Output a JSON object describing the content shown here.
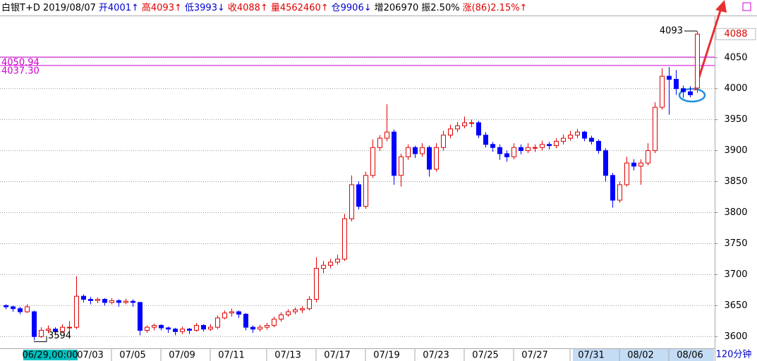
{
  "chart_data": {
    "type": "candlestick",
    "header": [
      {
        "text": "白银T+D 2019/08/07",
        "color": "#000000"
      },
      {
        "text": "开4001↑",
        "color": "#0000cc"
      },
      {
        "text": "高4093↑",
        "color": "#e00000"
      },
      {
        "text": "低3993↓",
        "color": "#0000cc"
      },
      {
        "text": "收4088↑",
        "color": "#e00000"
      },
      {
        "text": "量4562460↑",
        "color": "#e00000"
      },
      {
        "text": "仓9906↓",
        "color": "#0000cc"
      },
      {
        "text": "增206970",
        "color": "#000000"
      },
      {
        "text": "振2.50%",
        "color": "#000000"
      },
      {
        "text": "涨(86)2.15%↑",
        "color": "#e00000"
      }
    ],
    "period": "120分钟",
    "up_color": "#e00000",
    "down_color": "#0000ff",
    "ylim": [
      3581,
      4118
    ],
    "yticks": [
      3600,
      3650,
      3700,
      3750,
      3800,
      3850,
      3900,
      3950,
      4000,
      4050
    ],
    "grid": true,
    "ref_lines": [
      {
        "value": 4050.94,
        "label": "4050.94"
      },
      {
        "value": 4037.3,
        "label": "4037.30"
      }
    ],
    "ref_color": "#d000d0",
    "last_price": 4088,
    "annotations": [
      "4093",
      "3594"
    ],
    "categories": [
      "06/29,00:00",
      null,
      null,
      null,
      null,
      null,
      null,
      null,
      null,
      null,
      null,
      null,
      "07/03",
      null,
      null,
      null,
      null,
      null,
      "07/05",
      null,
      null,
      null,
      null,
      null,
      null,
      "07/09",
      null,
      null,
      null,
      null,
      null,
      null,
      "07/11",
      null,
      null,
      null,
      null,
      null,
      null,
      null,
      "07/13",
      null,
      null,
      null,
      null,
      null,
      null,
      "07/17",
      null,
      null,
      null,
      null,
      null,
      null,
      "07/19",
      null,
      null,
      null,
      null,
      null,
      null,
      "07/23",
      null,
      null,
      null,
      null,
      null,
      null,
      "07/25",
      null,
      null,
      null,
      null,
      null,
      null,
      "07/27",
      null,
      null,
      null,
      null,
      null,
      null,
      null,
      "07/31",
      null,
      null,
      null,
      null,
      null,
      null,
      "08/02",
      null,
      null,
      null,
      null,
      null,
      null,
      "08/06",
      null
    ],
    "ohlc": [
      [
        3650,
        3652,
        3644,
        3648
      ],
      [
        3648,
        3650,
        3640,
        3645
      ],
      [
        3645,
        3648,
        3636,
        3640
      ],
      [
        3640,
        3652,
        3638,
        3648
      ],
      [
        3640,
        3642,
        3594,
        3600
      ],
      [
        3600,
        3615,
        3598,
        3610
      ],
      [
        3610,
        3618,
        3605,
        3612
      ],
      [
        3612,
        3615,
        3602,
        3608
      ],
      [
        3608,
        3620,
        3606,
        3615
      ],
      [
        3615,
        3625,
        3600,
        3615
      ],
      [
        3615,
        3697,
        3612,
        3665
      ],
      [
        3665,
        3668,
        3655,
        3660
      ],
      [
        3660,
        3664,
        3652,
        3658
      ],
      [
        3658,
        3663,
        3654,
        3660
      ],
      [
        3660,
        3662,
        3650,
        3655
      ],
      [
        3655,
        3662,
        3652,
        3658
      ],
      [
        3658,
        3660,
        3648,
        3655
      ],
      [
        3655,
        3661,
        3652,
        3657
      ],
      [
        3657,
        3660,
        3648,
        3655
      ],
      [
        3655,
        3656,
        3602,
        3610
      ],
      [
        3610,
        3618,
        3606,
        3615
      ],
      [
        3615,
        3621,
        3610,
        3618
      ],
      [
        3618,
        3620,
        3610,
        3614
      ],
      [
        3614,
        3616,
        3606,
        3612
      ],
      [
        3612,
        3614,
        3602,
        3608
      ],
      [
        3608,
        3616,
        3604,
        3612
      ],
      [
        3612,
        3614,
        3604,
        3610
      ],
      [
        3610,
        3622,
        3608,
        3618
      ],
      [
        3618,
        3620,
        3608,
        3612
      ],
      [
        3612,
        3620,
        3609,
        3615
      ],
      [
        3615,
        3634,
        3612,
        3630
      ],
      [
        3630,
        3642,
        3628,
        3638
      ],
      [
        3638,
        3645,
        3632,
        3640
      ],
      [
        3640,
        3642,
        3630,
        3636
      ],
      [
        3636,
        3638,
        3610,
        3615
      ],
      [
        3615,
        3618,
        3606,
        3612
      ],
      [
        3612,
        3619,
        3608,
        3615
      ],
      [
        3615,
        3622,
        3611,
        3618
      ],
      [
        3618,
        3632,
        3615,
        3628
      ],
      [
        3628,
        3639,
        3624,
        3635
      ],
      [
        3635,
        3644,
        3632,
        3640
      ],
      [
        3640,
        3647,
        3636,
        3643
      ],
      [
        3643,
        3649,
        3638,
        3645
      ],
      [
        3645,
        3665,
        3642,
        3660
      ],
      [
        3660,
        3728,
        3655,
        3710
      ],
      [
        3710,
        3722,
        3702,
        3715
      ],
      [
        3715,
        3725,
        3710,
        3720
      ],
      [
        3720,
        3732,
        3716,
        3725
      ],
      [
        3725,
        3798,
        3722,
        3790
      ],
      [
        3790,
        3860,
        3786,
        3845
      ],
      [
        3845,
        3850,
        3805,
        3810
      ],
      [
        3810,
        3866,
        3806,
        3860
      ],
      [
        3860,
        3918,
        3856,
        3905
      ],
      [
        3905,
        3925,
        3900,
        3920
      ],
      [
        3920,
        3975,
        3915,
        3930
      ],
      [
        3930,
        3934,
        3845,
        3860
      ],
      [
        3860,
        3895,
        3842,
        3890
      ],
      [
        3890,
        3910,
        3885,
        3905
      ],
      [
        3905,
        3908,
        3888,
        3895
      ],
      [
        3895,
        3912,
        3890,
        3905
      ],
      [
        3905,
        3908,
        3858,
        3870
      ],
      [
        3870,
        3912,
        3866,
        3905
      ],
      [
        3905,
        3932,
        3900,
        3925
      ],
      [
        3925,
        3942,
        3920,
        3935
      ],
      [
        3935,
        3946,
        3930,
        3940
      ],
      [
        3940,
        3955,
        3936,
        3945
      ],
      [
        3945,
        3950,
        3938,
        3945
      ],
      [
        3945,
        3948,
        3920,
        3925
      ],
      [
        3925,
        3930,
        3905,
        3910
      ],
      [
        3910,
        3914,
        3898,
        3905
      ],
      [
        3905,
        3910,
        3885,
        3895
      ],
      [
        3895,
        3900,
        3882,
        3890
      ],
      [
        3890,
        3912,
        3886,
        3905
      ],
      [
        3905,
        3910,
        3894,
        3900
      ],
      [
        3900,
        3912,
        3896,
        3905
      ],
      [
        3905,
        3910,
        3898,
        3905
      ],
      [
        3905,
        3916,
        3900,
        3910
      ],
      [
        3910,
        3914,
        3902,
        3908
      ],
      [
        3908,
        3920,
        3904,
        3915
      ],
      [
        3915,
        3926,
        3910,
        3920
      ],
      [
        3920,
        3932,
        3916,
        3925
      ],
      [
        3925,
        3935,
        3920,
        3930
      ],
      [
        3930,
        3932,
        3915,
        3920
      ],
      [
        3920,
        3924,
        3910,
        3915
      ],
      [
        3915,
        3918,
        3895,
        3900
      ],
      [
        3900,
        3904,
        3850,
        3860
      ],
      [
        3860,
        3864,
        3808,
        3820
      ],
      [
        3820,
        3850,
        3816,
        3845
      ],
      [
        3845,
        3890,
        3842,
        3880
      ],
      [
        3880,
        3886,
        3868,
        3875
      ],
      [
        3875,
        3886,
        3845,
        3880
      ],
      [
        3880,
        3912,
        3876,
        3900
      ],
      [
        3900,
        3978,
        3896,
        3970
      ],
      [
        3970,
        4033,
        3966,
        4020
      ],
      [
        4020,
        4035,
        3958,
        4015
      ],
      [
        4015,
        4030,
        3990,
        4000
      ],
      [
        4000,
        4005,
        3985,
        3995
      ],
      [
        3995,
        4004,
        3986,
        3990
      ],
      [
        4001,
        4093,
        3993,
        4088
      ]
    ]
  }
}
